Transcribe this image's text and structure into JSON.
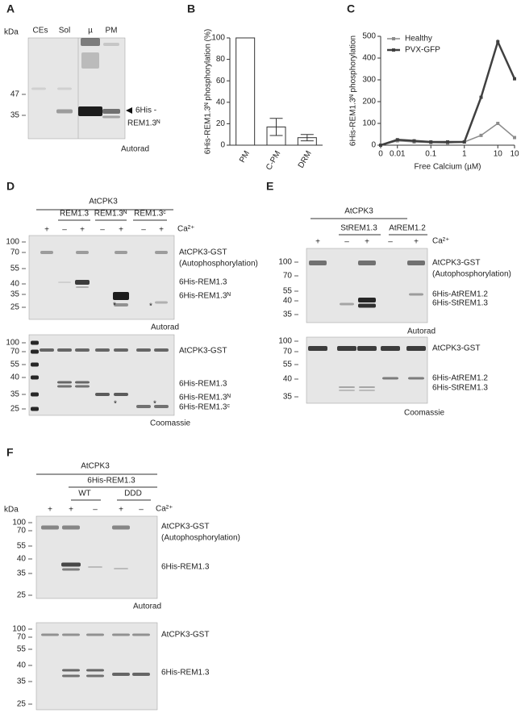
{
  "panels": {
    "A": {
      "label": "A",
      "kda": "kDa",
      "lanes": [
        "CEs",
        "Sol",
        "µ",
        "PM"
      ],
      "markers": [
        47,
        35
      ],
      "band_label": [
        "6His -",
        "REM1.3ᴺ"
      ],
      "method": "Autorad"
    },
    "D": {
      "label": "D",
      "kinase": "AtCPK3",
      "groups": [
        "REM1.3",
        "REM1.3ᴺ",
        "REM1.3ᶜ"
      ],
      "calcium": [
        "+",
        "–",
        "+",
        "–",
        "+",
        "–",
        "+"
      ],
      "calcium_label": "Ca²⁺",
      "autorad": {
        "markers": [
          100,
          70,
          55,
          40,
          35,
          25
        ],
        "bands": [
          "AtCPK3-GST",
          "(Autophosphorylation)",
          "6His-REM1.3",
          "6His-REM1.3ᴺ"
        ],
        "asterisks": [
          "*",
          "*"
        ],
        "method": "Autorad"
      },
      "coomassie": {
        "markers": [
          100,
          70,
          55,
          40,
          35,
          25
        ],
        "bands": [
          "AtCPK3-GST",
          "6His-REM1.3",
          "6His-REM1.3ᴺ",
          "6His-REM1.3ᶜ"
        ],
        "asterisks": [
          "*",
          "*"
        ],
        "method": "Coomassie"
      }
    },
    "E": {
      "label": "E",
      "kinase": "AtCPK3",
      "groups": [
        "StREM1.3",
        "AtREM1.2"
      ],
      "calcium": [
        "+",
        "–",
        "+",
        "–",
        "+"
      ],
      "calcium_label": "Ca²⁺",
      "autorad": {
        "markers": [
          100,
          70,
          55,
          40,
          35
        ],
        "bands": [
          "AtCPK3-GST",
          "(Autophosphorylation)",
          "6His-AtREM1.2",
          "6His-StREM1.3"
        ],
        "method": "Autorad"
      },
      "coomassie": {
        "markers": [
          100,
          70,
          55,
          40,
          35
        ],
        "bands": [
          "AtCPK3-GST",
          "6His-AtREM1.2",
          "6His-StREM1.3"
        ],
        "method": "Coomassie"
      }
    },
    "F": {
      "label": "F",
      "kinase": "AtCPK3",
      "substrate": "6His-REM1.3",
      "groups": [
        "WT",
        "DDD"
      ],
      "kda": "kDa",
      "calcium": [
        "+",
        "+",
        "–",
        "+",
        "–"
      ],
      "calcium_label": "Ca²⁺",
      "autorad": {
        "markers": [
          100,
          70,
          55,
          40,
          35,
          25
        ],
        "bands": [
          "AtCPK3-GST",
          "(Autophosphorylation)",
          "6His-REM1.3"
        ],
        "method": "Autorad"
      },
      "coomassie": {
        "markers": [
          100,
          70,
          55,
          40,
          35,
          25
        ],
        "bands": [
          "AtCPK3-GST",
          "6His-REM1.3"
        ]
      }
    }
  },
  "chart_data": [
    {
      "type": "bar",
      "panel": "B",
      "ylabel": "6His-REM1.3ᴺ phosphorylation (%)",
      "categories": [
        "PM",
        "C-PM",
        "DRM"
      ],
      "values": [
        100,
        17,
        7
      ],
      "errors": [
        null,
        8,
        3
      ],
      "color": "#ffffff",
      "ylim": [
        0,
        100
      ],
      "yticks": [
        0,
        20,
        40,
        60,
        80,
        100
      ]
    },
    {
      "type": "line",
      "panel": "C",
      "ylabel": "6His-REM1.3ᴺ phosphorylation",
      "xlabel": "Free Calcium (µM)",
      "categories": [
        "0",
        "0.01",
        null,
        "0.1",
        null,
        "1",
        null,
        "10",
        "10"
      ],
      "series": [
        {
          "name": "Healthy",
          "color": "#8c8c8c",
          "values": [
            0,
            20,
            15,
            12,
            10,
            15,
            45,
            100,
            35
          ]
        },
        {
          "name": "PVX-GFP",
          "color": "#404040",
          "values": [
            0,
            25,
            20,
            15,
            15,
            15,
            220,
            475,
            305
          ]
        }
      ],
      "ylim": [
        0,
        500
      ],
      "yticks": [
        0,
        100,
        200,
        300,
        400,
        500
      ]
    }
  ]
}
